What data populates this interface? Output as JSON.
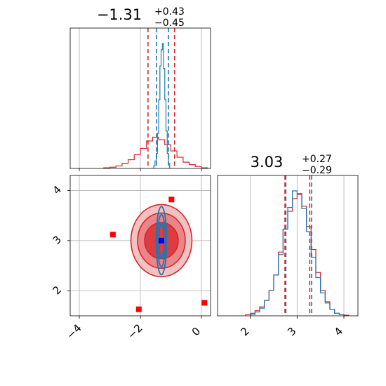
{
  "chart_data": {
    "type": "corner",
    "colors": {
      "blue": "#1f77b4",
      "red": "#d62728",
      "grid": "#b0b0b0"
    },
    "grid": true,
    "panels": [
      {
        "id": "hist-x",
        "type": "histogram",
        "title": {
          "value": "−1.31",
          "upper": "+0.43",
          "lower": "−0.45"
        },
        "xlim": [
          -4.3,
          0.3
        ],
        "quantile_lines": {
          "red": [
            -1.75,
            -0.88
          ],
          "blue": [
            -1.47,
            -1.08
          ]
        },
        "blue_hist": {
          "x": [
            -1.54,
            -1.5,
            -1.46,
            -1.42,
            -1.38,
            -1.34,
            -1.3,
            -1.26,
            -1.22,
            -1.18,
            -1.14,
            -1.1,
            -1.06
          ],
          "y": [
            0.02,
            0.06,
            0.12,
            0.28,
            0.55,
            0.82,
            0.95,
            1.0,
            0.8,
            0.55,
            0.3,
            0.12,
            0.04
          ]
        },
        "red_hist": {
          "x": [
            -3.1,
            -2.9,
            -2.7,
            -2.5,
            -2.3,
            -2.1,
            -1.9,
            -1.7,
            -1.5,
            -1.3,
            -1.1,
            -0.9,
            -0.7,
            -0.5,
            -0.3,
            -0.1,
            0.1
          ],
          "y": [
            0.005,
            0.01,
            0.02,
            0.04,
            0.07,
            0.11,
            0.16,
            0.22,
            0.25,
            0.23,
            0.19,
            0.14,
            0.09,
            0.05,
            0.03,
            0.015,
            0.005
          ]
        }
      },
      {
        "id": "hist-y",
        "type": "histogram",
        "title": {
          "value": "3.03",
          "upper": "+0.27",
          "lower": "−0.29"
        },
        "xlim": [
          1.3,
          4.3
        ],
        "xticks": [
          2,
          3,
          4
        ],
        "quantile_lines": {
          "red": [
            2.74,
            3.27
          ],
          "blue": [
            2.76,
            3.31
          ]
        },
        "blue_hist": {
          "x": [
            2.05,
            2.15,
            2.25,
            2.35,
            2.45,
            2.55,
            2.65,
            2.75,
            2.85,
            2.95,
            3.05,
            3.15,
            3.25,
            3.35,
            3.45,
            3.55,
            3.65,
            3.75,
            3.85,
            3.95
          ],
          "y": [
            0.01,
            0.03,
            0.06,
            0.12,
            0.2,
            0.32,
            0.48,
            0.68,
            0.85,
            0.98,
            0.96,
            0.84,
            0.66,
            0.46,
            0.3,
            0.18,
            0.1,
            0.05,
            0.02,
            0.01
          ]
        },
        "red_hist": {
          "x": [
            1.95,
            2.05,
            2.15,
            2.25,
            2.35,
            2.45,
            2.55,
            2.65,
            2.75,
            2.85,
            2.95,
            3.05,
            3.15,
            3.25,
            3.35,
            3.45,
            3.55,
            3.65,
            3.75,
            3.85,
            3.95,
            4.05
          ],
          "y": [
            0.01,
            0.02,
            0.04,
            0.07,
            0.12,
            0.2,
            0.32,
            0.5,
            0.68,
            0.82,
            0.92,
            0.95,
            0.86,
            0.7,
            0.52,
            0.34,
            0.2,
            0.11,
            0.05,
            0.02,
            0.01,
            0.005
          ]
        }
      },
      {
        "id": "joint",
        "type": "2d-contour",
        "xlim": [
          -4.3,
          0.3
        ],
        "ylim": [
          1.5,
          4.3
        ],
        "xticks": [
          -4,
          -2,
          0
        ],
        "yticks": [
          2,
          3,
          4
        ],
        "red_contours": {
          "center": [
            -1.31,
            3.0
          ],
          "levels": [
            {
              "rx": 1.0,
              "ry": 0.72,
              "fill": "#f4c1c2"
            },
            {
              "rx": 0.78,
              "ry": 0.55,
              "fill": "#ea8589"
            },
            {
              "rx": 0.55,
              "ry": 0.36,
              "fill": "#de3c43"
            }
          ]
        },
        "blue_contours": {
          "center": [
            -1.31,
            3.0
          ],
          "levels": [
            {
              "rx": 0.17,
              "ry": 0.68
            },
            {
              "rx": 0.13,
              "ry": 0.52
            },
            {
              "rx": 0.08,
              "ry": 0.35
            }
          ]
        },
        "truth_points_red": [
          {
            "x": -2.9,
            "y": 3.12
          },
          {
            "x": -2.05,
            "y": 1.63
          },
          {
            "x": 0.1,
            "y": 1.76
          },
          {
            "x": -0.98,
            "y": 3.82
          }
        ],
        "truth_points_blue": [
          {
            "x": -1.31,
            "y": 3.0
          }
        ]
      }
    ]
  }
}
